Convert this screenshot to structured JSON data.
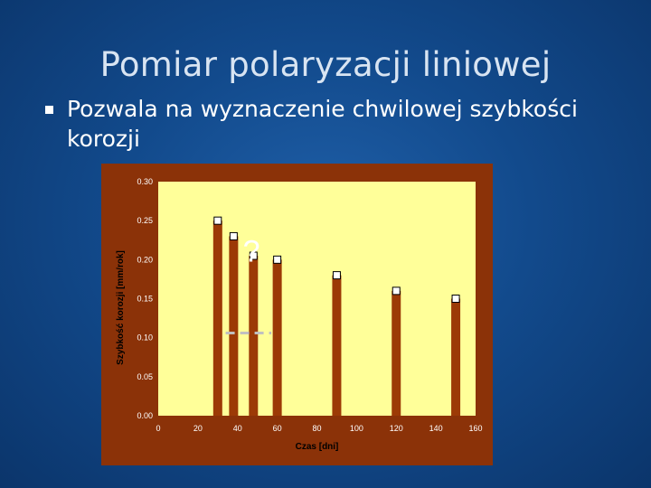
{
  "slide": {
    "title": "Pomiar polaryzacji liniowej",
    "bullet": "Pozwala na wyznaczenie chwilowej szybkości korozji"
  },
  "colors": {
    "frame": "#8b3208",
    "plot_bg": "#ffff99",
    "bar": "#9c3a06",
    "marker_fill": "#ffffff",
    "marker_stroke": "#000000",
    "dash": "#c0c0c0"
  },
  "chart_data": {
    "type": "bar",
    "xlabel": "Czas [dni]",
    "ylabel": "Szybkość korozji [mm/rok]",
    "xlim": [
      0,
      160
    ],
    "ylim": [
      0,
      0.3
    ],
    "xticks": [
      "0",
      "20",
      "40",
      "60",
      "80",
      "100",
      "120",
      "140",
      "160"
    ],
    "yticks": [
      "0.00",
      "0.05",
      "0.10",
      "0.15",
      "0.20",
      "0.25",
      "0.30"
    ],
    "x": [
      30,
      38,
      48,
      60,
      90,
      120,
      150
    ],
    "values": [
      0.25,
      0.23,
      0.205,
      0.2,
      0.18,
      0.16,
      0.15
    ],
    "annotation": "?",
    "grid": false
  }
}
